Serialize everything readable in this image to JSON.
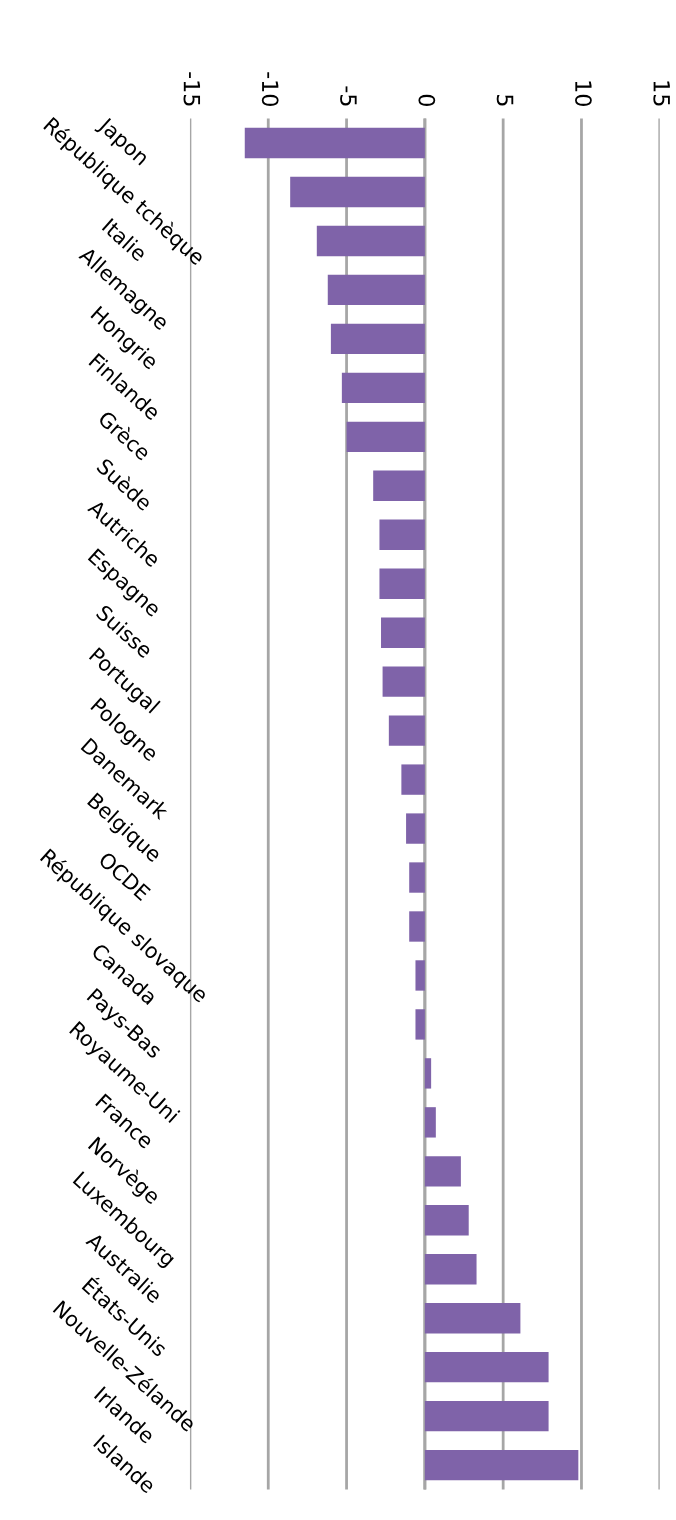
{
  "chart_data": {
    "type": "bar",
    "orientation": "horizontal",
    "categories": [
      "Japon",
      "République tchèque",
      "Italie",
      "Allemagne",
      "Hongrie",
      "Finlande",
      "Grèce",
      "Suède",
      "Autriche",
      "Espagne",
      "Suisse",
      "Portugal",
      "Pologne",
      "Danemark",
      "Belgique",
      "OCDE",
      "République slovaque",
      "Canada",
      "Pays-Bas",
      "Royaume-Uni",
      "France",
      "Norvège",
      "Luxembourg",
      "Australie",
      "États-Unis",
      "Nouvelle-Zélande",
      "Irlande",
      "Islande"
    ],
    "values": [
      -11.5,
      -8.6,
      -6.9,
      -6.2,
      -6.0,
      -5.3,
      -5.0,
      -3.3,
      -2.9,
      -2.9,
      -2.8,
      -2.7,
      -2.3,
      -1.5,
      -1.2,
      -1.0,
      -1.0,
      -0.6,
      -0.6,
      0.4,
      0.7,
      2.3,
      2.8,
      3.3,
      6.1,
      7.9,
      7.9,
      9.8
    ],
    "color": "#7f63a9",
    "xlim": [
      -15,
      15
    ],
    "xticks": [
      -15,
      -10,
      -5,
      0,
      5,
      10,
      15
    ],
    "grid": "x"
  }
}
